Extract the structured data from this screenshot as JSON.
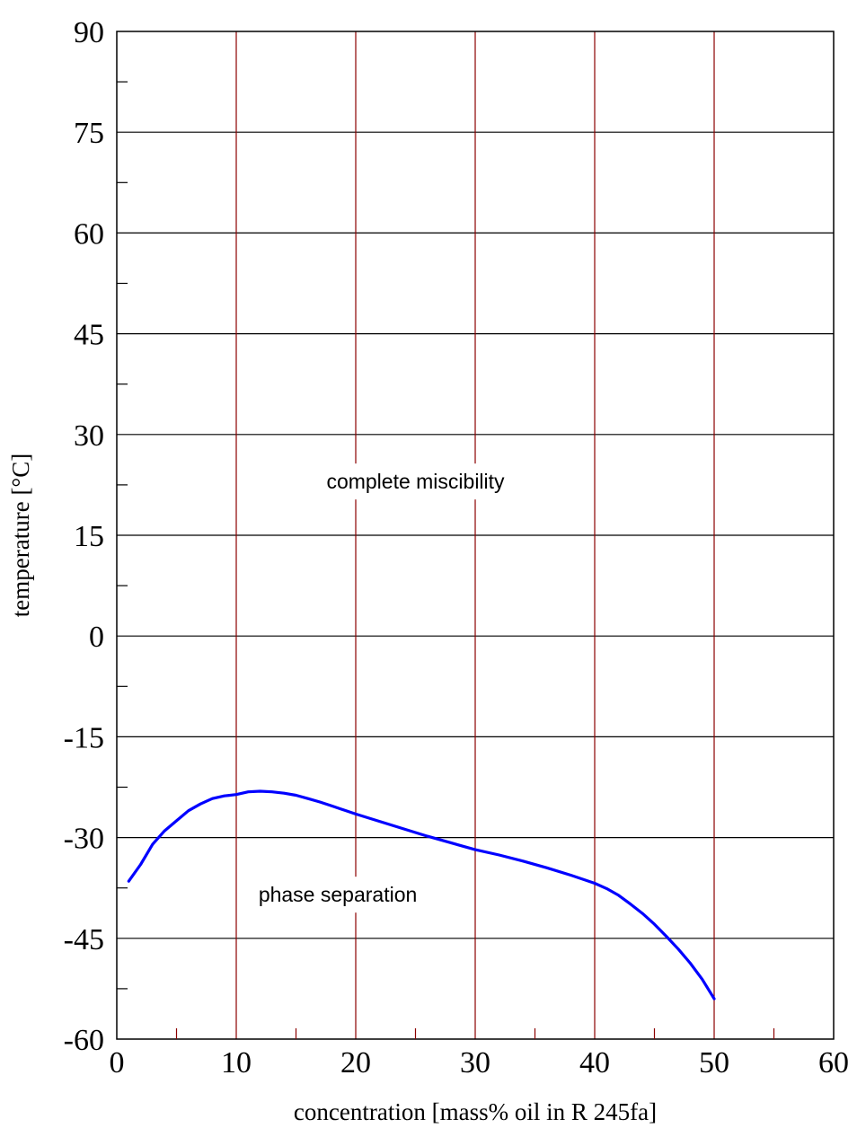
{
  "chart_data": {
    "type": "line",
    "title": "",
    "xlabel": "concentration [mass% oil in R 245fa]",
    "ylabel": "temperature [°C]",
    "xlim": [
      0,
      60
    ],
    "ylim": [
      -60,
      90
    ],
    "x_ticks": [
      0,
      10,
      20,
      30,
      40,
      50,
      60
    ],
    "y_ticks": [
      -60,
      -45,
      -30,
      -15,
      0,
      15,
      30,
      45,
      60,
      75,
      90
    ],
    "x_minor_ticks": [
      5,
      15,
      25,
      35,
      45,
      55
    ],
    "y_minor_ticks": [
      -52.5,
      -37.5,
      -22.5,
      -7.5,
      7.5,
      22.5,
      37.5,
      52.5,
      67.5,
      82.5
    ],
    "grid": true,
    "colors": {
      "series": "#0000ff",
      "vertical_grid": "#8b0000",
      "horizontal_grid": "#000000"
    },
    "annotations": [
      {
        "text": "complete miscibility",
        "x": 25,
        "y": 23
      },
      {
        "text": "phase separation",
        "x": 18.5,
        "y": -38.5
      }
    ],
    "series": [
      {
        "x": [
          1,
          2,
          3,
          4,
          5,
          6,
          7,
          8,
          9,
          10,
          11,
          12,
          13,
          14,
          15,
          16,
          17,
          18,
          19,
          20,
          22,
          24,
          26,
          28,
          30,
          32,
          34,
          36,
          38,
          40,
          41,
          42,
          43,
          44,
          45,
          46,
          47,
          48,
          49,
          50
        ],
        "values": [
          -36.5,
          -34,
          -31,
          -29,
          -27.5,
          -26,
          -25,
          -24.2,
          -23.8,
          -23.6,
          -23.2,
          -23.1,
          -23.2,
          -23.4,
          -23.7,
          -24.2,
          -24.7,
          -25.3,
          -25.9,
          -26.5,
          -27.6,
          -28.7,
          -29.8,
          -30.8,
          -31.8,
          -32.6,
          -33.5,
          -34.5,
          -35.6,
          -36.8,
          -37.6,
          -38.6,
          -39.9,
          -41.3,
          -42.9,
          -44.7,
          -46.6,
          -48.7,
          -51.1,
          -54
        ]
      }
    ]
  }
}
